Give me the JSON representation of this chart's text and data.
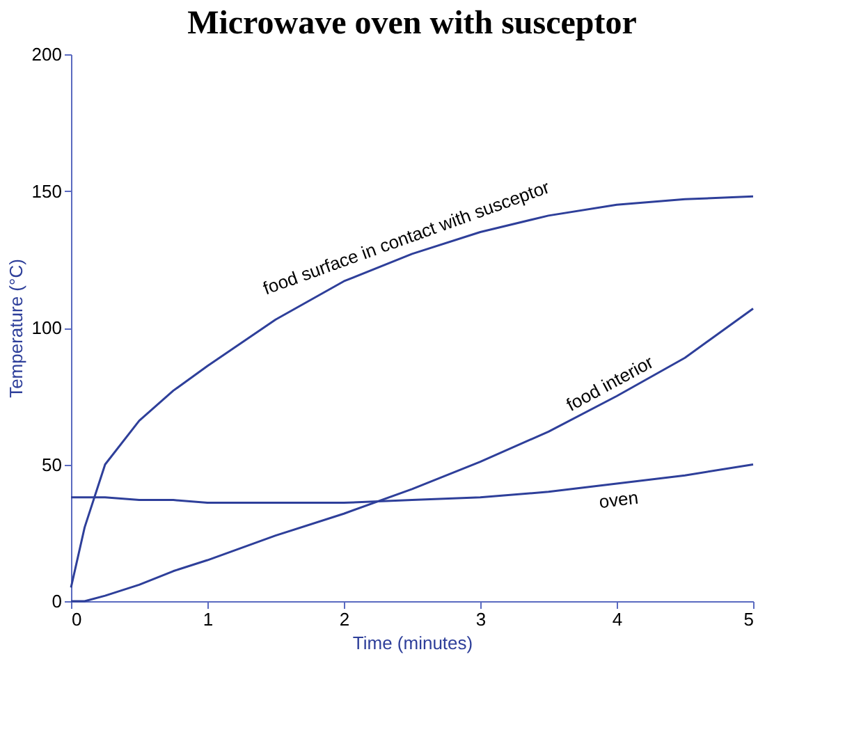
{
  "chart_data": {
    "type": "line",
    "title": "Microwave oven with susceptor",
    "xlabel": "Time (minutes)",
    "ylabel": "Temperature (°C)",
    "x": [
      0,
      0.1,
      0.25,
      0.5,
      0.75,
      1,
      1.5,
      2,
      2.5,
      3,
      3.5,
      4,
      4.5,
      5
    ],
    "series": [
      {
        "name": "food surface in contact with susceptor",
        "color": "#2e3f9a",
        "values": [
          5,
          27,
          50,
          66,
          77,
          86,
          103,
          117,
          127,
          135,
          141,
          145,
          147,
          148
        ]
      },
      {
        "name": "food interior",
        "color": "#2e3f9a",
        "values": [
          0,
          0,
          2,
          6,
          11,
          15,
          24,
          32,
          41,
          51,
          62,
          75,
          89,
          107
        ]
      },
      {
        "name": "oven",
        "color": "#2e3f9a",
        "values": [
          38,
          38,
          38,
          37,
          37,
          36,
          36,
          36,
          37,
          38,
          40,
          43,
          46,
          50
        ]
      }
    ],
    "xlim": [
      0,
      5
    ],
    "xticks": [
      0,
      1,
      2,
      3,
      4,
      5
    ],
    "ylim": [
      0,
      200
    ],
    "yticks": [
      0,
      50,
      100,
      150,
      200
    ],
    "grid": false,
    "marker": "none",
    "line_style": "solid"
  }
}
